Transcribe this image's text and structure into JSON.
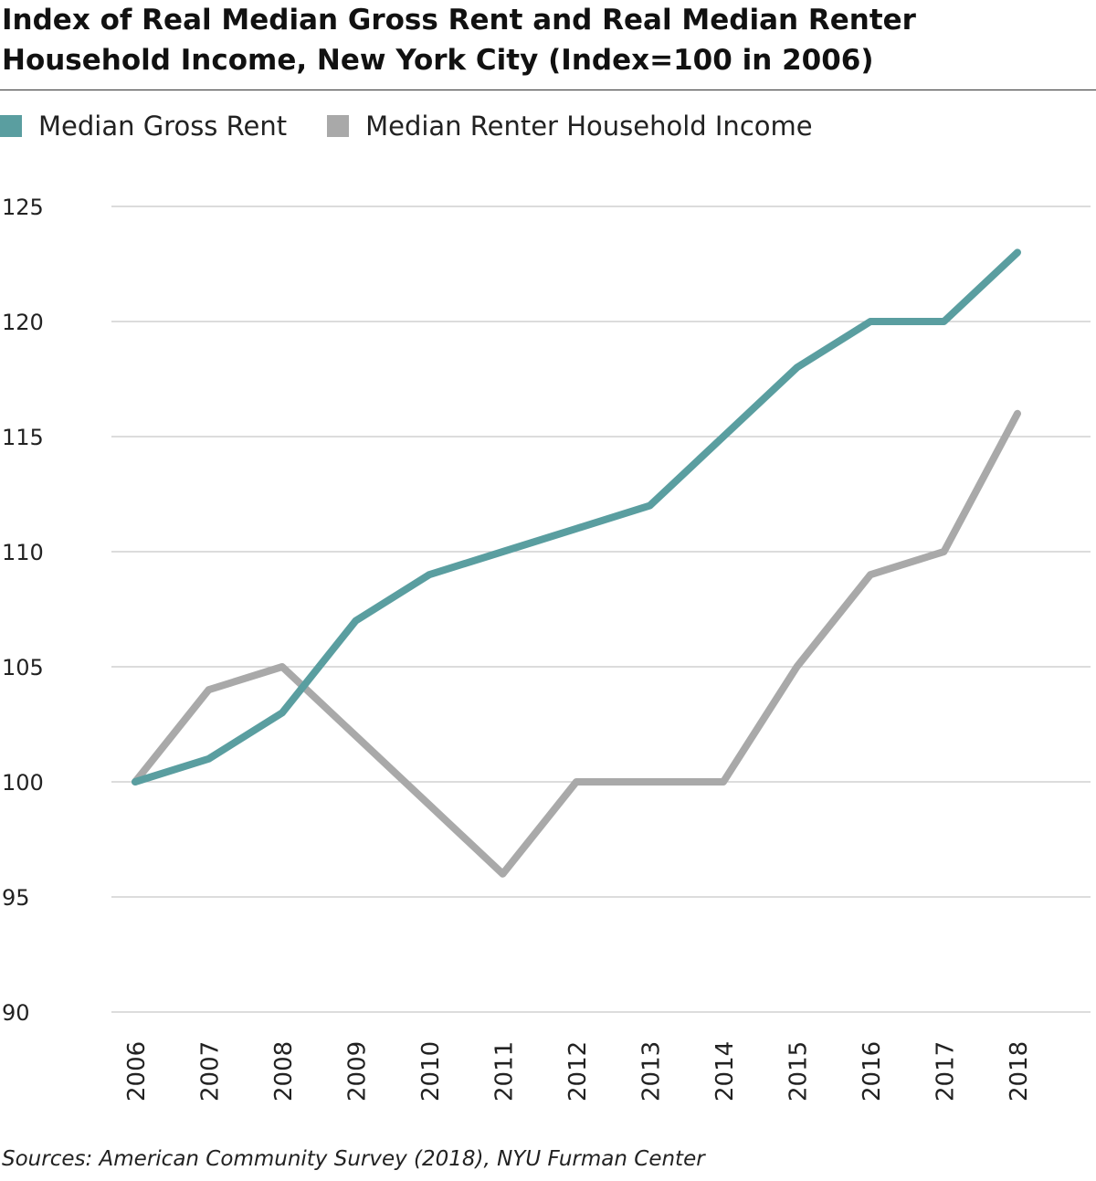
{
  "header": {
    "title_line1": "Index of Real Median Gross Rent and Real Median Renter",
    "title_line2": "Household Income, New York City (Index=100 in 2006)"
  },
  "legend": [
    {
      "label": "Median Gross Rent",
      "color": "#5a9ea0"
    },
    {
      "label": "Median Renter Household Income",
      "color": "#a9a9a9"
    }
  ],
  "footer": {
    "source": "Sources: American Community Survey (2018), NYU Furman Center"
  },
  "chart_data": {
    "type": "line",
    "title": "Index of Real Median Gross Rent and Real Median Renter Household Income, New York City (Index=100 in 2006)",
    "x": [
      "2006",
      "2007",
      "2008",
      "2009",
      "2010",
      "2011",
      "2012",
      "2013",
      "2014",
      "2015",
      "2016",
      "2017",
      "2018"
    ],
    "series": [
      {
        "name": "Median Gross Rent",
        "color": "#5a9ea0",
        "values": [
          100,
          101,
          103,
          107,
          109,
          110,
          111,
          112,
          115,
          118,
          120,
          120,
          123
        ]
      },
      {
        "name": "Median Renter Household Income",
        "color": "#a9a9a9",
        "values": [
          100,
          104,
          105,
          102,
          99,
          96,
          100,
          100,
          100,
          105,
          109,
          110,
          116
        ]
      }
    ],
    "yticks": [
      90,
      95,
      100,
      105,
      110,
      115,
      120,
      125
    ],
    "ylim": [
      90,
      125
    ],
    "grid": true,
    "legend_position": "top-left"
  }
}
